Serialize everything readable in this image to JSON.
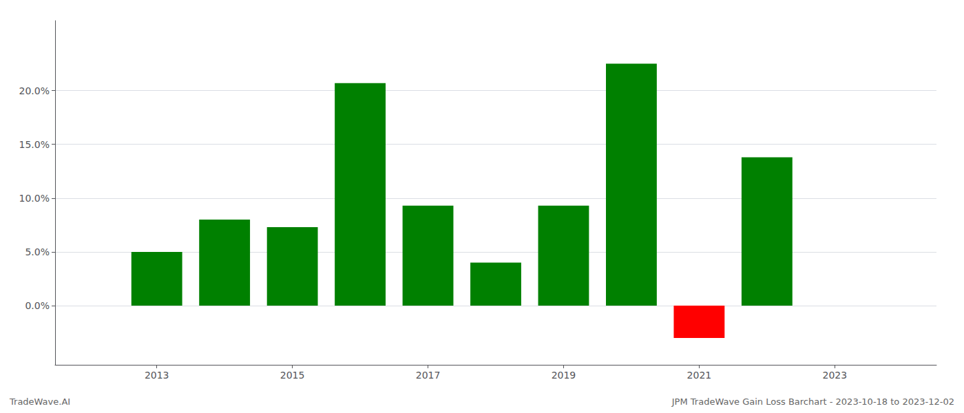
{
  "chart_data": {
    "type": "bar",
    "x": [
      2013,
      2014,
      2015,
      2016,
      2017,
      2018,
      2019,
      2020,
      2021,
      2022
    ],
    "values": [
      0.05,
      0.08,
      0.073,
      0.207,
      0.093,
      0.04,
      0.093,
      0.225,
      -0.03,
      0.138
    ],
    "colors": [
      "#008000",
      "#008000",
      "#008000",
      "#008000",
      "#008000",
      "#008000",
      "#008000",
      "#008000",
      "#ff0000",
      "#008000"
    ],
    "xlim": [
      2011.5,
      2024.5
    ],
    "xticks": [
      2013,
      2015,
      2017,
      2019,
      2021,
      2023
    ],
    "ylim": [
      -0.055,
      0.265
    ],
    "yticks": [
      {
        "value": 0.0,
        "label": "0.0%"
      },
      {
        "value": 0.05,
        "label": "5.0%"
      },
      {
        "value": 0.1,
        "label": "10.0%"
      },
      {
        "value": 0.15,
        "label": "15.0%"
      },
      {
        "value": 0.2,
        "label": "20.0%"
      }
    ],
    "grid": true,
    "annotations": [
      "TradeWave.AI",
      "JPM TradeWave Gain Loss Barchart - 2023-10-18 to 2023-12-02"
    ]
  }
}
